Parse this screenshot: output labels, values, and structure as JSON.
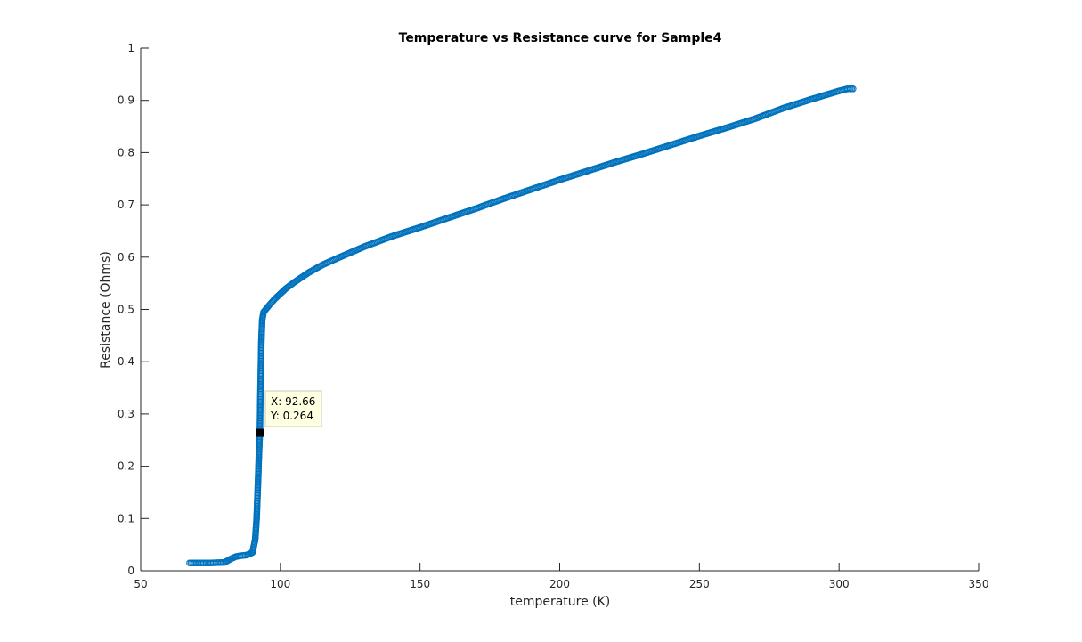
{
  "chart_data": {
    "type": "scatter",
    "title": "Temperature vs Resistance curve for Sample4",
    "xlabel": "temperature (K)",
    "ylabel": "Resistance (Ohms)",
    "xlim": [
      50,
      350
    ],
    "ylim": [
      0,
      1
    ],
    "xticks": [
      "50",
      "100",
      "150",
      "200",
      "250",
      "300",
      "350"
    ],
    "yticks": [
      "0",
      "0.1",
      "0.2",
      "0.3",
      "0.4",
      "0.5",
      "0.6",
      "0.7",
      "0.8",
      "0.9",
      "1"
    ],
    "marker": "open-circle",
    "color": "#0072BD",
    "grid": false,
    "series": [
      {
        "curve": [
          [
            67.5,
            0.015
          ],
          [
            70,
            0.015
          ],
          [
            75,
            0.015
          ],
          [
            80,
            0.016
          ],
          [
            82,
            0.022
          ],
          [
            84,
            0.027
          ],
          [
            86,
            0.029
          ],
          [
            88,
            0.03
          ],
          [
            90,
            0.035
          ],
          [
            91,
            0.06
          ],
          [
            91.5,
            0.1
          ],
          [
            92,
            0.17
          ],
          [
            92.3,
            0.22
          ],
          [
            92.66,
            0.264
          ],
          [
            92.8,
            0.32
          ],
          [
            93,
            0.38
          ],
          [
            93.2,
            0.44
          ],
          [
            93.5,
            0.48
          ],
          [
            94,
            0.495
          ],
          [
            96,
            0.508
          ],
          [
            98,
            0.52
          ],
          [
            100,
            0.53
          ],
          [
            102,
            0.54
          ],
          [
            105,
            0.552
          ],
          [
            110,
            0.57
          ],
          [
            115,
            0.585
          ],
          [
            120,
            0.597
          ],
          [
            130,
            0.62
          ],
          [
            140,
            0.64
          ],
          [
            150,
            0.657
          ],
          [
            160,
            0.675
          ],
          [
            170,
            0.693
          ],
          [
            180,
            0.712
          ],
          [
            190,
            0.73
          ],
          [
            200,
            0.748
          ],
          [
            210,
            0.765
          ],
          [
            220,
            0.782
          ],
          [
            230,
            0.798
          ],
          [
            240,
            0.815
          ],
          [
            250,
            0.832
          ],
          [
            260,
            0.848
          ],
          [
            270,
            0.865
          ],
          [
            280,
            0.885
          ],
          [
            290,
            0.902
          ],
          [
            300,
            0.918
          ],
          [
            303,
            0.922
          ],
          [
            305,
            0.922
          ]
        ]
      }
    ],
    "datatip": {
      "x": 92.66,
      "y": 0.264,
      "x_text": "X: 92.66",
      "y_text": "Y: 0.264"
    }
  }
}
